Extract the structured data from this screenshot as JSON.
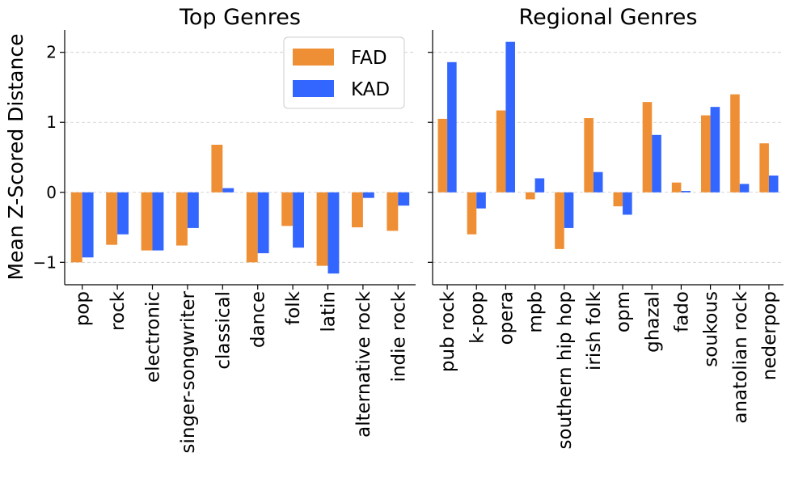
{
  "chart_data": {
    "type": "bar",
    "ylabel": "Mean Z-Scored Distance",
    "ylim": [
      -1.32,
      2.32
    ],
    "yticks": [
      -1,
      0,
      1,
      2
    ],
    "grid": "horizontal dashed",
    "legend": {
      "placement": "top-right of left panel",
      "entries": [
        "FAD",
        "KAD"
      ]
    },
    "colors": {
      "FAD": "#ef8f35",
      "KAD": "#3366ff"
    },
    "panels": [
      {
        "title": "Top Genres",
        "categories": [
          "pop",
          "rock",
          "electronic",
          "singer-songwriter",
          "classical",
          "dance",
          "folk",
          "latin",
          "alternative rock",
          "indie rock"
        ],
        "series": [
          {
            "name": "FAD",
            "values": [
              -1.0,
              -0.75,
              -0.83,
              -0.76,
              0.68,
              -1.0,
              -0.48,
              -1.05,
              -0.5,
              -0.55
            ]
          },
          {
            "name": "KAD",
            "values": [
              -0.93,
              -0.6,
              -0.83,
              -0.51,
              0.06,
              -0.87,
              -0.79,
              -1.16,
              -0.08,
              -0.19
            ]
          }
        ]
      },
      {
        "title": "Regional Genres",
        "categories": [
          "pub rock",
          "k-pop",
          "opera",
          "mpb",
          "southern hip hop",
          "irish folk",
          "opm",
          "ghazal",
          "fado",
          "soukous",
          "anatolian rock",
          "nederpop"
        ],
        "series": [
          {
            "name": "FAD",
            "values": [
              1.05,
              -0.6,
              1.17,
              -0.1,
              -0.81,
              1.06,
              -0.2,
              1.29,
              0.14,
              1.1,
              1.4,
              0.7
            ]
          },
          {
            "name": "KAD",
            "values": [
              1.86,
              -0.23,
              2.15,
              0.2,
              -0.51,
              0.29,
              -0.32,
              0.82,
              0.02,
              1.22,
              0.12,
              0.24
            ]
          }
        ]
      }
    ]
  }
}
